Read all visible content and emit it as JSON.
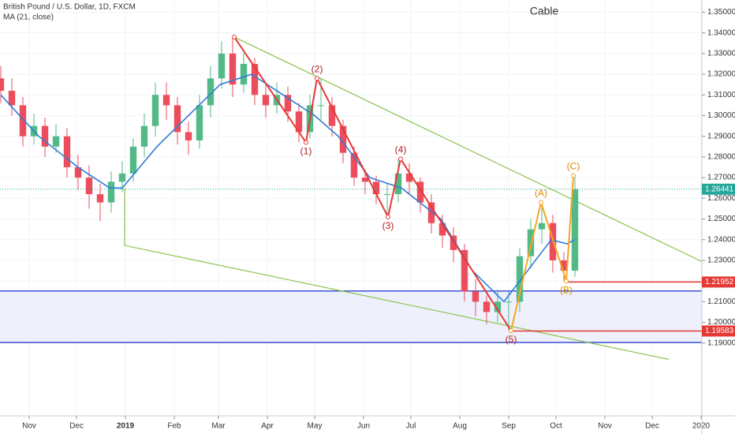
{
  "chart_data": {
    "type": "candlestick",
    "title": "British Pound / U.S. Dollar, 1D, FXCM",
    "annotation": "Cable",
    "x": [
      -18,
      -11,
      -4,
      3,
      10,
      17,
      24,
      31,
      38,
      45,
      52,
      59,
      66,
      73,
      80,
      87,
      94,
      101,
      108,
      115,
      122,
      129,
      136,
      143,
      150,
      157,
      164,
      171,
      178,
      185,
      192,
      199,
      206,
      213,
      220,
      227,
      234,
      241,
      248,
      255,
      262,
      269,
      276,
      283,
      290,
      297,
      304,
      311,
      318,
      325,
      332,
      339,
      346
    ],
    "open": [
      1.318,
      1.312,
      1.305,
      1.29,
      1.295,
      1.285,
      1.29,
      1.275,
      1.27,
      1.262,
      1.258,
      1.268,
      1.272,
      1.285,
      1.295,
      1.31,
      1.305,
      1.292,
      1.288,
      1.305,
      1.318,
      1.33,
      1.315,
      1.325,
      1.31,
      1.305,
      1.31,
      1.302,
      1.292,
      1.305,
      1.305,
      1.295,
      1.282,
      1.27,
      1.268,
      1.262,
      1.262,
      1.272,
      1.268,
      1.258,
      1.248,
      1.242,
      1.235,
      1.215,
      1.21,
      1.205,
      1.21,
      1.21,
      1.232,
      1.245,
      1.248,
      1.23,
      1.225
    ],
    "high": [
      1.324,
      1.318,
      1.309,
      1.301,
      1.299,
      1.296,
      1.294,
      1.281,
      1.276,
      1.267,
      1.273,
      1.278,
      1.289,
      1.301,
      1.316,
      1.316,
      1.309,
      1.297,
      1.31,
      1.324,
      1.336,
      1.338,
      1.33,
      1.328,
      1.315,
      1.316,
      1.314,
      1.306,
      1.31,
      1.318,
      1.309,
      1.298,
      1.285,
      1.274,
      1.271,
      1.267,
      1.279,
      1.277,
      1.27,
      1.262,
      1.252,
      1.246,
      1.238,
      1.221,
      1.213,
      1.216,
      1.215,
      1.236,
      1.25,
      1.258,
      1.252,
      1.234,
      1.271
    ],
    "low": [
      1.306,
      1.3,
      1.285,
      1.286,
      1.28,
      1.282,
      1.27,
      1.264,
      1.255,
      1.249,
      1.253,
      1.263,
      1.268,
      1.28,
      1.29,
      1.298,
      1.286,
      1.281,
      1.284,
      1.299,
      1.313,
      1.309,
      1.311,
      1.305,
      1.299,
      1.301,
      1.297,
      1.287,
      1.289,
      1.298,
      1.29,
      1.277,
      1.266,
      1.262,
      1.257,
      1.251,
      1.258,
      1.262,
      1.253,
      1.243,
      1.236,
      1.229,
      1.21,
      1.203,
      1.199,
      1.2,
      1.196,
      1.205,
      1.226,
      1.238,
      1.224,
      1.22,
      1.222
    ],
    "close": [
      1.312,
      1.305,
      1.29,
      1.295,
      1.285,
      1.29,
      1.275,
      1.27,
      1.262,
      1.258,
      1.268,
      1.272,
      1.285,
      1.295,
      1.31,
      1.305,
      1.292,
      1.288,
      1.305,
      1.318,
      1.33,
      1.315,
      1.325,
      1.31,
      1.305,
      1.31,
      1.302,
      1.292,
      1.305,
      1.305,
      1.295,
      1.282,
      1.27,
      1.268,
      1.262,
      1.262,
      1.272,
      1.268,
      1.258,
      1.248,
      1.242,
      1.235,
      1.215,
      1.21,
      1.205,
      1.21,
      1.21,
      1.232,
      1.245,
      1.248,
      1.23,
      1.225,
      1.2644
    ],
    "up_color": "#53b987",
    "down_color": "#eb4d5c",
    "ma": {
      "name": "MA (21, close)",
      "color": "#2f7bd6",
      "x": [
        -18,
        6,
        31,
        51,
        59,
        81,
        101,
        121,
        141,
        161,
        181,
        196,
        216,
        236,
        261,
        281,
        301,
        321,
        331,
        341,
        346
      ],
      "values": [
        1.31,
        1.29,
        1.275,
        1.265,
        1.265,
        1.285,
        1.3,
        1.315,
        1.32,
        1.31,
        1.3,
        1.29,
        1.27,
        1.265,
        1.25,
        1.225,
        1.21,
        1.23,
        1.24,
        1.238,
        1.24
      ]
    },
    "waves": [
      {
        "color": "#e53935",
        "label_color": "#b71c1c",
        "x": [
          130,
          175.5,
          182.5,
          227.5,
          235.5,
          305.5
        ],
        "y": [
          1.338,
          1.287,
          1.318,
          1.251,
          1.279,
          1.196
        ],
        "labels": [
          null,
          "(1)",
          "(2)",
          "(3)",
          "(4)",
          "(5)"
        ]
      },
      {
        "color": "#f5a623",
        "label_color": "#d68a00",
        "x": [
          305.5,
          324.5,
          340.5,
          345
        ],
        "y": [
          1.196,
          1.258,
          1.22,
          1.271
        ],
        "labels": [
          null,
          "(A)",
          "(B)",
          "(C)"
        ]
      }
    ],
    "trendlines": [
      {
        "color": "#8bc34a",
        "x": [
          130,
          426.5
        ],
        "y": [
          1.338,
          1.2294
        ]
      },
      {
        "color": "#8bc34a",
        "x": [
          60.5,
          60.5,
          405.5
        ],
        "y": [
          1.265,
          1.2372,
          1.1821
        ]
      }
    ],
    "zone": {
      "color": "#3f51d6",
      "fill": "#eef1fc",
      "values": [
        1.1903,
        1.2152
      ]
    },
    "levels": [
      {
        "value": 1.21952,
        "color": "#e53935",
        "from": 340.5
      },
      {
        "value": 1.19583,
        "color": "#e53935",
        "from": 305.5
      }
    ],
    "last_price": {
      "value": 1.26441,
      "color": "#26a69a"
    },
    "xlim": [
      -18.5,
      426.5
    ],
    "ylim": [
      1.1548,
      1.3559
    ],
    "xticks": [
      {
        "value": 0,
        "label": "Nov"
      },
      {
        "value": 30,
        "label": "Dec"
      },
      {
        "value": 61,
        "label": "2019"
      },
      {
        "value": 92,
        "label": "Feb"
      },
      {
        "value": 120,
        "label": "Mar"
      },
      {
        "value": 151,
        "label": "Apr"
      },
      {
        "value": 181,
        "label": "May"
      },
      {
        "value": 212,
        "label": "Jun"
      },
      {
        "value": 242,
        "label": "Jul"
      },
      {
        "value": 273,
        "label": "Aug"
      },
      {
        "value": 304,
        "label": "Sep"
      },
      {
        "value": 334,
        "label": "Oct"
      },
      {
        "value": 365,
        "label": "Nov"
      },
      {
        "value": 395,
        "label": "Dec"
      },
      {
        "value": 426,
        "label": "2020"
      }
    ],
    "yticks": [
      {
        "value": 1.19,
        "label": "1.19000"
      },
      {
        "value": 1.2,
        "label": "1.20000"
      },
      {
        "value": 1.21,
        "label": "1.21000"
      },
      {
        "value": 1.22,
        "label": "1.22000"
      },
      {
        "value": 1.23,
        "label": "1.23000"
      },
      {
        "value": 1.24,
        "label": "1.24000"
      },
      {
        "value": 1.25,
        "label": "1.25000"
      },
      {
        "value": 1.26,
        "label": "1.26000"
      },
      {
        "value": 1.27,
        "label": "1.27000"
      },
      {
        "value": 1.28,
        "label": "1.28000"
      },
      {
        "value": 1.29,
        "label": "1.29000"
      },
      {
        "value": 1.3,
        "label": "1.30000"
      },
      {
        "value": 1.31,
        "label": "1.31000"
      },
      {
        "value": 1.32,
        "label": "1.32000"
      },
      {
        "value": 1.33,
        "label": "1.33000"
      },
      {
        "value": 1.34,
        "label": "1.34000"
      },
      {
        "value": 1.35,
        "label": "1.35000"
      }
    ],
    "grid": true
  }
}
